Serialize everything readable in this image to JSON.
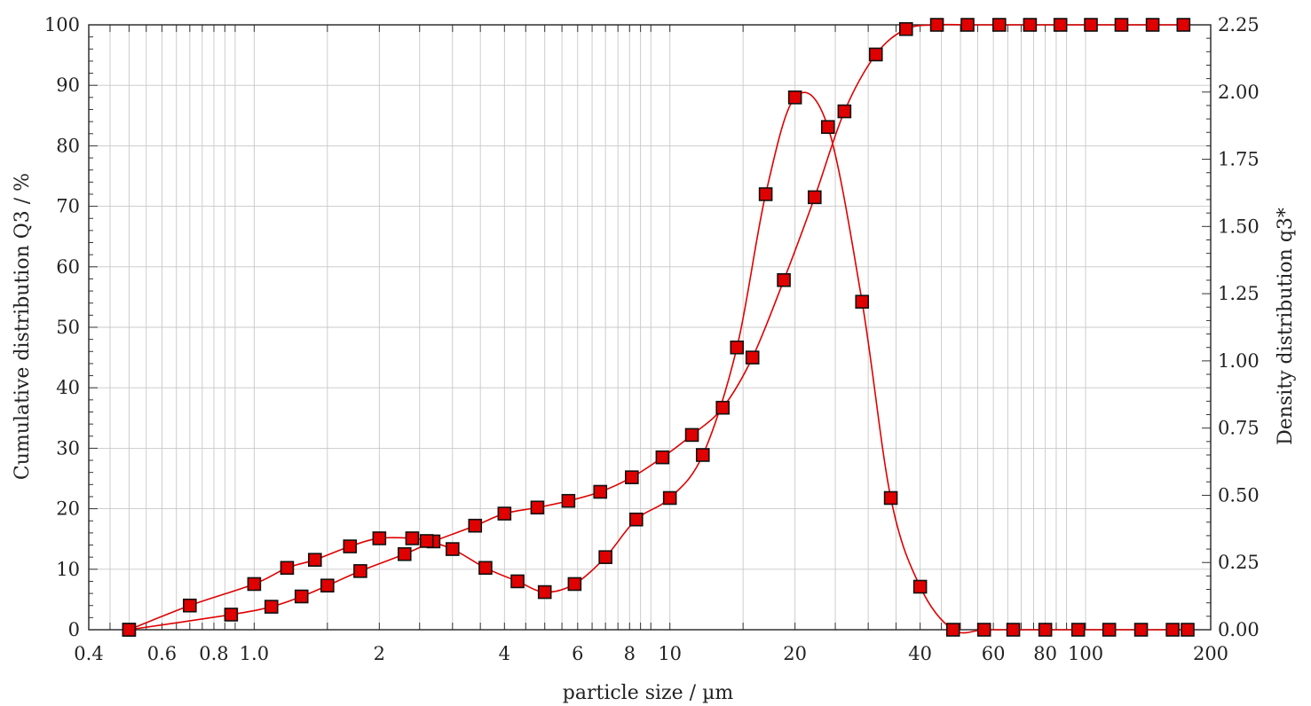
{
  "chart_data": {
    "type": "scatter",
    "xlabel": "particle size / µm",
    "ylabel_left": "Cumulative distribution Q3 / %",
    "ylabel_right": "Density distribution q3*",
    "xscale": "log",
    "xlim": [
      0.4,
      200
    ],
    "ylim_left": [
      0,
      100
    ],
    "ylim_right": [
      0,
      2.25
    ],
    "grid": true,
    "x_tick_labels": [
      "0.4",
      "0.6",
      "0.8",
      "1.0",
      "2",
      "4",
      "6",
      "8",
      "10",
      "20",
      "40",
      "60",
      "80",
      "100",
      "200"
    ],
    "x_tick_values": [
      0.4,
      0.6,
      0.8,
      1.0,
      2,
      4,
      6,
      8,
      10,
      20,
      40,
      60,
      80,
      100,
      200
    ],
    "y_left_tick_labels": [
      "0",
      "10",
      "20",
      "30",
      "40",
      "50",
      "60",
      "70",
      "80",
      "90",
      "100"
    ],
    "y_left_tick_values": [
      0,
      10,
      20,
      30,
      40,
      50,
      60,
      70,
      80,
      90,
      100
    ],
    "y_right_tick_labels": [
      "0.00",
      "0.25",
      "0.50",
      "0.75",
      "1.00",
      "1.25",
      "1.50",
      "1.75",
      "2.00",
      "2.25"
    ],
    "y_right_tick_values": [
      0,
      0.25,
      0.5,
      0.75,
      1.0,
      1.25,
      1.5,
      1.75,
      2.0,
      2.25
    ],
    "series": [
      {
        "axis": "left",
        "color": "#e00000",
        "points": [
          [
            0.5,
            0
          ],
          [
            0.88,
            2.5
          ],
          [
            1.1,
            3.8
          ],
          [
            1.3,
            5.5
          ],
          [
            1.5,
            7.3
          ],
          [
            1.8,
            9.7
          ],
          [
            2.3,
            12.5
          ],
          [
            2.7,
            14.6
          ],
          [
            3.4,
            17.2
          ],
          [
            4.0,
            19.2
          ],
          [
            4.8,
            20.2
          ],
          [
            5.7,
            21.3
          ],
          [
            6.8,
            22.8
          ],
          [
            8.1,
            25.2
          ],
          [
            9.6,
            28.5
          ],
          [
            11.3,
            32.2
          ],
          [
            13.4,
            36.7
          ],
          [
            15.8,
            45.0
          ],
          [
            18.8,
            57.8
          ],
          [
            22.3,
            71.5
          ],
          [
            26.3,
            85.7
          ],
          [
            31.3,
            95.1
          ],
          [
            37.0,
            99.3
          ],
          [
            43.9,
            100
          ],
          [
            52.0,
            100
          ],
          [
            62.0,
            100
          ],
          [
            73.5,
            100
          ],
          [
            87.0,
            100
          ],
          [
            103.0,
            100
          ],
          [
            122.0,
            100
          ],
          [
            145.0,
            100
          ],
          [
            172.0,
            100
          ]
        ]
      },
      {
        "axis": "right",
        "color": "#e00000",
        "points": [
          [
            0.5,
            0
          ],
          [
            0.7,
            0.09
          ],
          [
            1.0,
            0.17
          ],
          [
            1.2,
            0.23
          ],
          [
            1.4,
            0.26
          ],
          [
            1.7,
            0.31
          ],
          [
            2.0,
            0.34
          ],
          [
            2.4,
            0.34
          ],
          [
            2.6,
            0.33
          ],
          [
            3.0,
            0.3
          ],
          [
            3.6,
            0.23
          ],
          [
            4.3,
            0.18
          ],
          [
            5.0,
            0.14
          ],
          [
            5.9,
            0.17
          ],
          [
            7.0,
            0.27
          ],
          [
            8.3,
            0.41
          ],
          [
            10.0,
            0.49
          ],
          [
            12.0,
            0.65
          ],
          [
            14.5,
            1.05
          ],
          [
            17.0,
            1.62
          ],
          [
            20.0,
            1.98
          ],
          [
            24.0,
            1.87
          ],
          [
            29.0,
            1.22
          ],
          [
            34.0,
            0.49
          ],
          [
            40.0,
            0.16
          ],
          [
            48.0,
            0
          ],
          [
            57.0,
            0
          ],
          [
            67.0,
            0
          ],
          [
            80.0,
            0
          ],
          [
            96.0,
            0
          ],
          [
            114.0,
            0
          ],
          [
            136.0,
            0
          ],
          [
            162.0,
            0
          ],
          [
            176.0,
            0
          ]
        ]
      }
    ]
  }
}
